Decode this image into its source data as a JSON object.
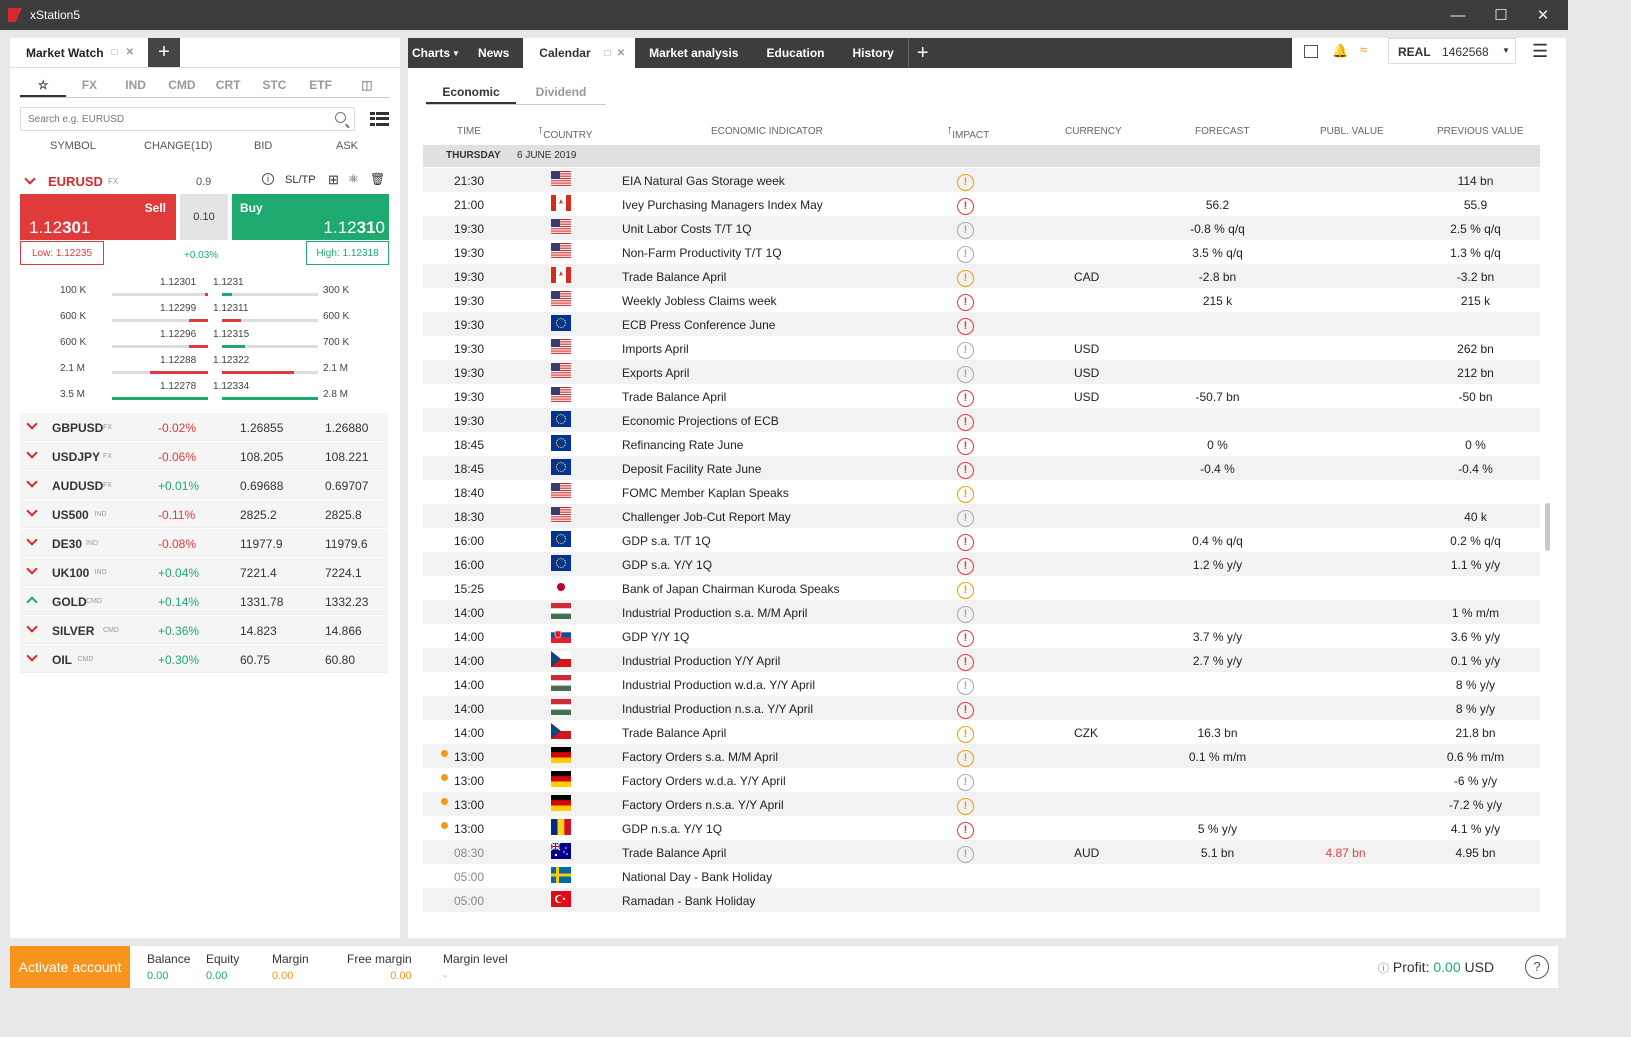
{
  "app": {
    "title": "xStation5"
  },
  "account": {
    "type": "REAL",
    "number": "1462568"
  },
  "market_watch": {
    "tab_label": "Market Watch",
    "categories": [
      "FX",
      "IND",
      "CMD",
      "CRT",
      "STC",
      "ETF"
    ],
    "search_placeholder": "Search e.g. EURUSD",
    "columns": {
      "symbol": "SYMBOL",
      "change": "CHANGE(1D)",
      "bid": "BID",
      "ask": "ASK"
    },
    "selected": {
      "symbol": "EURUSD",
      "class": "FX",
      "spread": "0.9",
      "sltp": "SL/TP",
      "sell_label": "Sell",
      "sell_price_a": "1.12",
      "sell_price_b": "30",
      "sell_price_c": "1",
      "buy_label": "Buy",
      "buy_price_a": "1.12",
      "buy_price_b": "31",
      "buy_price_c": "0",
      "volume": "0.10",
      "change": "+0.03%",
      "low": "Low: 1.12235",
      "high": "High: 1.12318"
    },
    "depth": [
      {
        "bid_vol": "100 K",
        "bid": "1.12301",
        "ask": "1.1231",
        "ask_vol": "300 K",
        "bid_fill": 0.03,
        "ask_fill": 0.1
      },
      {
        "bid_vol": "600 K",
        "bid": "1.12299",
        "ask": "1.12311",
        "ask_vol": "600 K",
        "bid_fill": 0.2,
        "ask_fill": 0.2
      },
      {
        "bid_vol": "600 K",
        "bid": "1.12296",
        "ask": "1.12315",
        "ask_vol": "700 K",
        "bid_fill": 0.2,
        "ask_fill": 0.24
      },
      {
        "bid_vol": "2.1 M",
        "bid": "1.12288",
        "ask": "1.12322",
        "ask_vol": "2.1 M",
        "bid_fill": 0.6,
        "ask_fill": 0.75
      },
      {
        "bid_vol": "3.5 M",
        "bid": "1.12278",
        "ask": "1.12334",
        "ask_vol": "2.8 M",
        "bid_fill": 1.0,
        "ask_fill": 1.0
      }
    ],
    "instruments": [
      {
        "symbol": "GBPUSD",
        "class": "FX",
        "change": "-0.02%",
        "bid": "1.26855",
        "ask": "1.26880",
        "dir": "down"
      },
      {
        "symbol": "USDJPY",
        "class": "FX",
        "change": "-0.06%",
        "bid": "108.205",
        "ask": "108.221",
        "dir": "down"
      },
      {
        "symbol": "AUDUSD",
        "class": "FX",
        "change": "+0.01%",
        "bid": "0.69688",
        "ask": "0.69707",
        "dir": "down"
      },
      {
        "symbol": "US500",
        "class": "IND",
        "change": "-0.11%",
        "bid": "2825.2",
        "ask": "2825.8",
        "dir": "down"
      },
      {
        "symbol": "DE30",
        "class": "IND",
        "change": "-0.08%",
        "bid": "11977.9",
        "ask": "11979.6",
        "dir": "down"
      },
      {
        "symbol": "UK100",
        "class": "IND",
        "change": "+0.04%",
        "bid": "7221.4",
        "ask": "7224.1",
        "dir": "down"
      },
      {
        "symbol": "GOLD",
        "class": "CMD",
        "change": "+0.14%",
        "bid": "1331.78",
        "ask": "1332.23",
        "dir": "up"
      },
      {
        "symbol": "SILVER",
        "class": "CMD",
        "change": "+0.36%",
        "bid": "14.823",
        "ask": "14.866",
        "dir": "down"
      },
      {
        "symbol": "OIL",
        "class": "CMD",
        "change": "+0.30%",
        "bid": "60.75",
        "ask": "60.80",
        "dir": "down"
      }
    ]
  },
  "tabs": [
    "Charts",
    "News",
    "Calendar",
    "Market analysis",
    "Education",
    "History"
  ],
  "calendar": {
    "subtabs": [
      "Economic",
      "Dividend"
    ],
    "columns": {
      "time": "TIME",
      "country": "COUNTRY",
      "indicator": "ECONOMIC INDICATOR",
      "impact": "IMPACT",
      "currency": "CURRENCY",
      "forecast": "FORECAST",
      "publ": "PUBL. VALUE",
      "previous": "PREVIOUS VALUE"
    },
    "day_label": "THURSDAY",
    "date_label": "6 JUNE 2019",
    "rows": [
      {
        "time": "21:30",
        "flag": "US",
        "indicator": "EIA Natural Gas Storage week",
        "impact": "med",
        "currency": "",
        "forecast": "",
        "publ": "",
        "previous": "114 bn"
      },
      {
        "time": "21:00",
        "flag": "CA",
        "indicator": "Ivey Purchasing Managers Index May",
        "impact": "high",
        "currency": "",
        "forecast": "56.2",
        "publ": "",
        "previous": "55.9"
      },
      {
        "time": "19:30",
        "flag": "US",
        "indicator": "Unit Labor Costs T/T 1Q",
        "impact": "low",
        "currency": "",
        "forecast": "-0.8 % q/q",
        "publ": "",
        "previous": "2.5 % q/q"
      },
      {
        "time": "19:30",
        "flag": "US",
        "indicator": "Non-Farm Productivity T/T 1Q",
        "impact": "low",
        "currency": "",
        "forecast": "3.5 % q/q",
        "publ": "",
        "previous": "1.3 % q/q"
      },
      {
        "time": "19:30",
        "flag": "CA",
        "indicator": "Trade Balance April",
        "impact": "med",
        "currency": "CAD",
        "forecast": "-2.8 bn",
        "publ": "",
        "previous": "-3.2 bn"
      },
      {
        "time": "19:30",
        "flag": "US",
        "indicator": "Weekly Jobless Claims week",
        "impact": "high",
        "currency": "",
        "forecast": "215 k",
        "publ": "",
        "previous": "215 k"
      },
      {
        "time": "19:30",
        "flag": "EU",
        "indicator": "ECB Press Conference June",
        "impact": "high",
        "currency": "",
        "forecast": "",
        "publ": "",
        "previous": ""
      },
      {
        "time": "19:30",
        "flag": "US",
        "indicator": "Imports April",
        "impact": "low",
        "currency": "USD",
        "forecast": "",
        "publ": "",
        "previous": "262 bn"
      },
      {
        "time": "19:30",
        "flag": "US",
        "indicator": "Exports April",
        "impact": "low",
        "currency": "USD",
        "forecast": "",
        "publ": "",
        "previous": "212 bn"
      },
      {
        "time": "19:30",
        "flag": "US",
        "indicator": "Trade Balance April",
        "impact": "high",
        "currency": "USD",
        "forecast": "-50.7 bn",
        "publ": "",
        "previous": "-50 bn"
      },
      {
        "time": "19:30",
        "flag": "EU",
        "indicator": "Economic Projections of ECB",
        "impact": "high",
        "currency": "",
        "forecast": "",
        "publ": "",
        "previous": ""
      },
      {
        "time": "18:45",
        "flag": "EU",
        "indicator": "Refinancing Rate June",
        "impact": "high",
        "currency": "",
        "forecast": "0 %",
        "publ": "",
        "previous": "0 %"
      },
      {
        "time": "18:45",
        "flag": "EU",
        "indicator": "Deposit Facility Rate June",
        "impact": "high",
        "currency": "",
        "forecast": "-0.4 %",
        "publ": "",
        "previous": "-0.4 %"
      },
      {
        "time": "18:40",
        "flag": "US",
        "indicator": "FOMC Member Kaplan Speaks",
        "impact": "med",
        "currency": "",
        "forecast": "",
        "publ": "",
        "previous": ""
      },
      {
        "time": "18:30",
        "flag": "US",
        "indicator": "Challenger Job-Cut Report May",
        "impact": "low",
        "currency": "",
        "forecast": "",
        "publ": "",
        "previous": "40 k"
      },
      {
        "time": "16:00",
        "flag": "EU",
        "indicator": "GDP s.a. T/T 1Q",
        "impact": "high",
        "currency": "",
        "forecast": "0.4 % q/q",
        "publ": "",
        "previous": "0.2 % q/q"
      },
      {
        "time": "16:00",
        "flag": "EU",
        "indicator": "GDP s.a. Y/Y 1Q",
        "impact": "high",
        "currency": "",
        "forecast": "1.2 % y/y",
        "publ": "",
        "previous": "1.1 % y/y"
      },
      {
        "time": "15:25",
        "flag": "JP",
        "indicator": "Bank of Japan Chairman Kuroda Speaks",
        "impact": "med",
        "currency": "",
        "forecast": "",
        "publ": "",
        "previous": ""
      },
      {
        "time": "14:00",
        "flag": "HU",
        "indicator": "Industrial Production s.a. M/M April",
        "impact": "low",
        "currency": "",
        "forecast": "",
        "publ": "",
        "previous": "1 % m/m"
      },
      {
        "time": "14:00",
        "flag": "SK",
        "indicator": "GDP Y/Y 1Q",
        "impact": "high",
        "currency": "",
        "forecast": "3.7 % y/y",
        "publ": "",
        "previous": "3.6 % y/y"
      },
      {
        "time": "14:00",
        "flag": "CZ",
        "indicator": "Industrial Production Y/Y April",
        "impact": "high",
        "currency": "",
        "forecast": "2.7 % y/y",
        "publ": "",
        "previous": "0.1 % y/y"
      },
      {
        "time": "14:00",
        "flag": "HU",
        "indicator": "Industrial Production w.d.a. Y/Y April",
        "impact": "low",
        "currency": "",
        "forecast": "",
        "publ": "",
        "previous": "8 % y/y"
      },
      {
        "time": "14:00",
        "flag": "HU",
        "indicator": "Industrial Production n.s.a. Y/Y April",
        "impact": "high",
        "currency": "",
        "forecast": "",
        "publ": "",
        "previous": "8 % y/y"
      },
      {
        "time": "14:00",
        "flag": "CZ",
        "indicator": "Trade Balance April",
        "impact": "med",
        "currency": "CZK",
        "forecast": "16.3 bn",
        "publ": "",
        "previous": "21.8 bn"
      },
      {
        "time": "13:00",
        "flag": "DE",
        "indicator": "Factory Orders s.a. M/M April",
        "impact": "med",
        "currency": "",
        "forecast": "0.1 % m/m",
        "publ": "",
        "previous": "0.6 % m/m",
        "dot": true
      },
      {
        "time": "13:00",
        "flag": "DE",
        "indicator": "Factory Orders w.d.a. Y/Y April",
        "impact": "low",
        "currency": "",
        "forecast": "",
        "publ": "",
        "previous": "-6 % y/y",
        "dot": true
      },
      {
        "time": "13:00",
        "flag": "DE",
        "indicator": "Factory Orders n.s.a. Y/Y April",
        "impact": "med",
        "currency": "",
        "forecast": "",
        "publ": "",
        "previous": "-7.2 % y/y",
        "dot": true
      },
      {
        "time": "13:00",
        "flag": "RO",
        "indicator": "GDP n.s.a. Y/Y 1Q",
        "impact": "high",
        "currency": "",
        "forecast": "5 % y/y",
        "publ": "",
        "previous": "4.1 % y/y",
        "dot": true
      },
      {
        "time": "08:30",
        "flag": "AU",
        "indicator": "Trade Balance April",
        "impact": "low",
        "currency": "AUD",
        "forecast": "5.1 bn",
        "publ": "4.87 bn",
        "previous": "4.95 bn",
        "past": true
      },
      {
        "time": "05:00",
        "flag": "SE",
        "indicator": "National Day - Bank Holiday",
        "impact": "",
        "currency": "",
        "forecast": "",
        "publ": "",
        "previous": "",
        "past": true
      },
      {
        "time": "05:00",
        "flag": "TR",
        "indicator": "Ramadan - Bank Holiday",
        "impact": "",
        "currency": "",
        "forecast": "",
        "publ": "",
        "previous": "",
        "past": true
      }
    ]
  },
  "footer": {
    "activate": "Activate account",
    "balance_label": "Balance",
    "balance": "0.00",
    "equity_label": "Equity",
    "equity": "0.00",
    "margin_label": "Margin",
    "margin": "0.00",
    "free_margin_label": "Free margin",
    "free_margin": "0.00",
    "margin_level_label": "Margin level",
    "margin_level": "-",
    "profit_label": "Profit:",
    "profit": "0.00",
    "profit_ccy": "USD",
    "help": "?"
  },
  "colors": {
    "sell": "#e03a3a",
    "buy": "#1eaa6f",
    "accent": "#f7941d",
    "dark": "#3d3d3d"
  }
}
